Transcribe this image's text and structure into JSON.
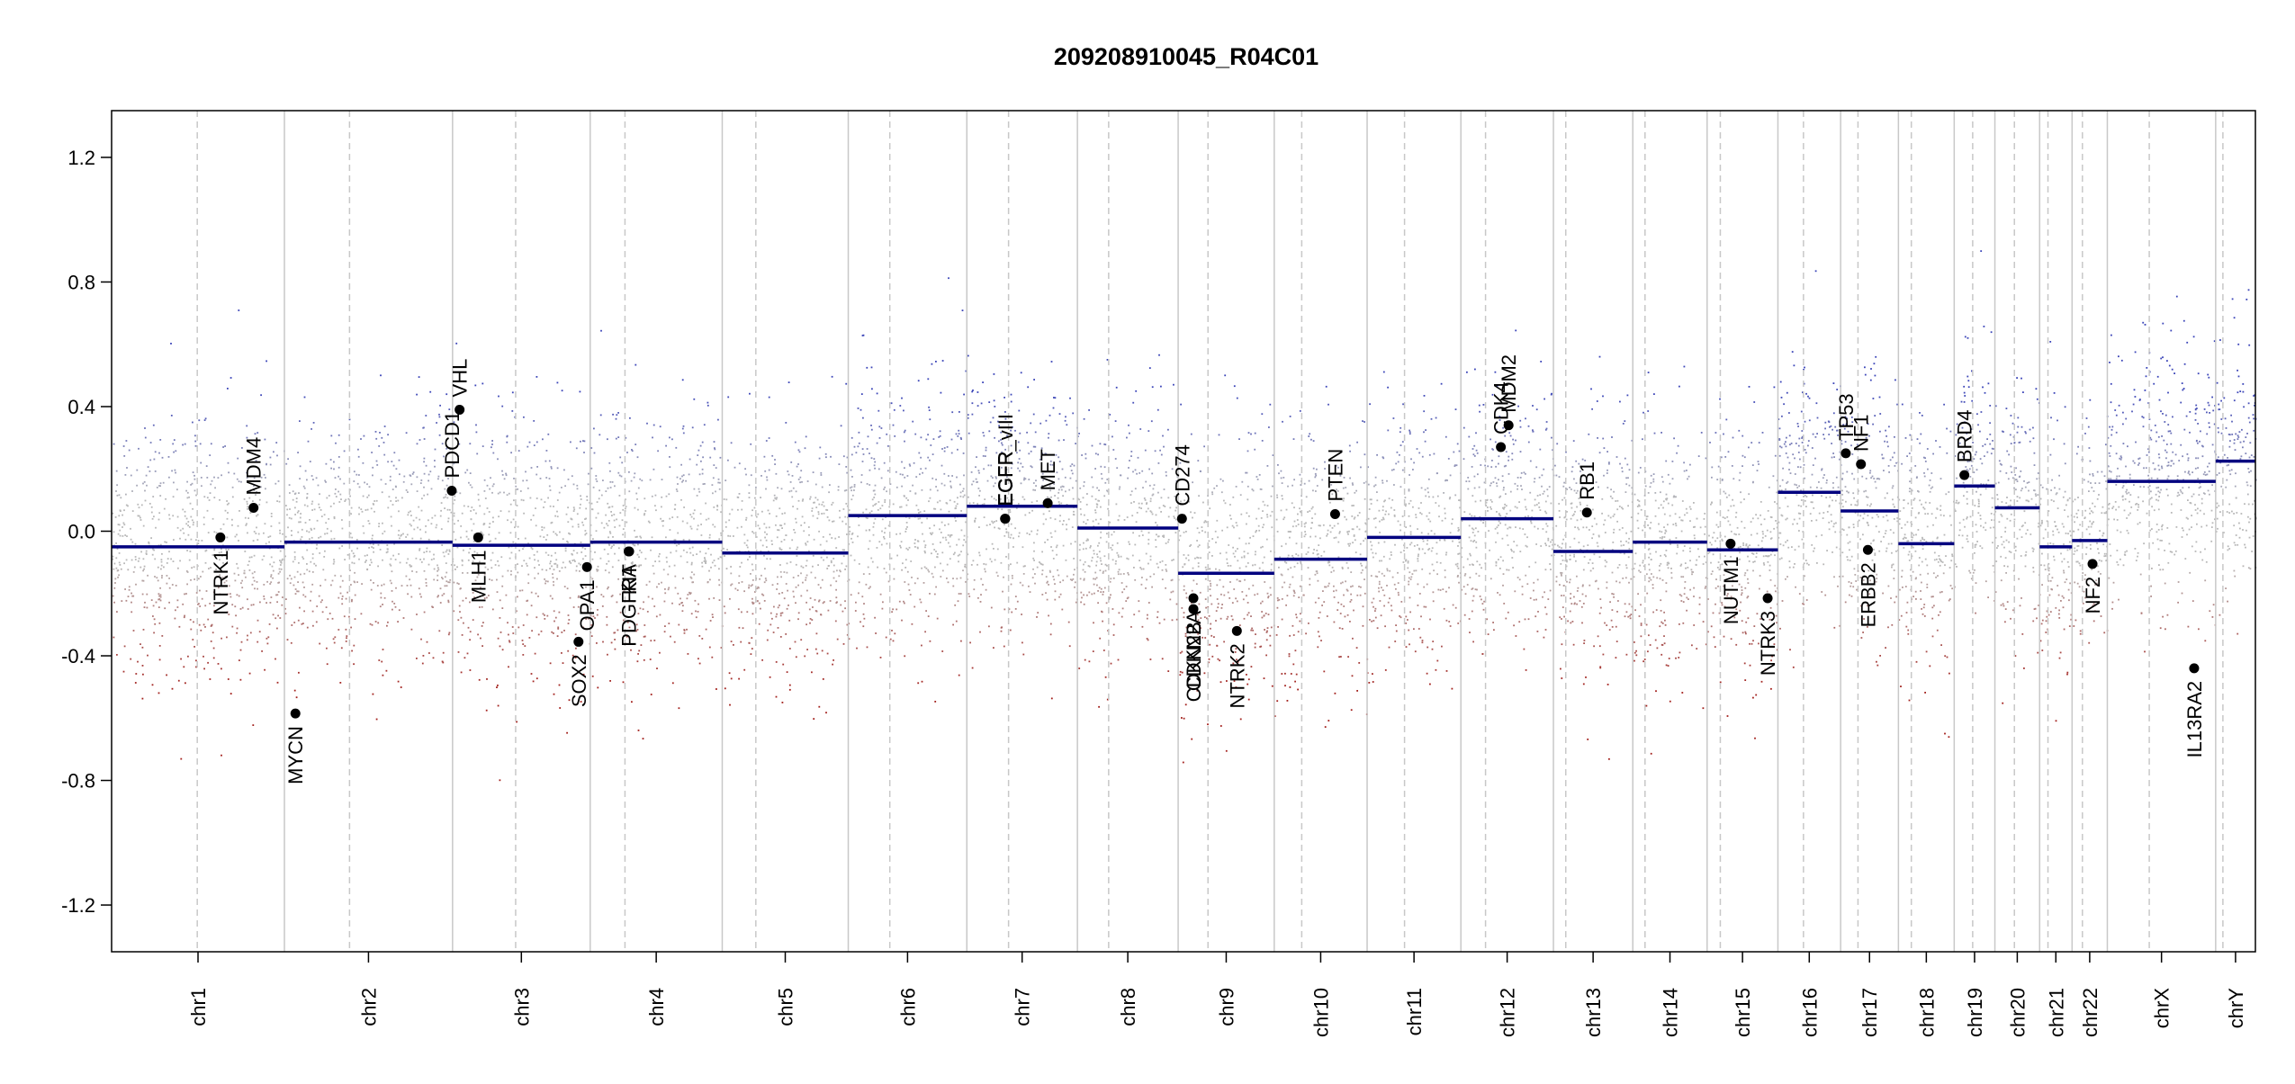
{
  "chart_data": {
    "type": "scatter",
    "title": "209208910045_R04C01",
    "xlabel": "",
    "ylabel": "",
    "ylim": [
      -1.35,
      1.35
    ],
    "yticks": [
      1.2,
      0.8,
      0.4,
      0.0,
      -0.4,
      -0.8,
      -1.2
    ],
    "ytick_labels": [
      "1.2",
      "0.8",
      "0.4",
      "0.0",
      "-0.4",
      "-0.8",
      "-1.2"
    ],
    "chromosomes": [
      {
        "name": "chr1",
        "start": 0,
        "end": 248.96,
        "centromere": 123.4,
        "segment": -0.05
      },
      {
        "name": "chr2",
        "start": 248.96,
        "end": 491.15,
        "centromere": 342.76,
        "segment": -0.035
      },
      {
        "name": "chr3",
        "start": 491.15,
        "end": 689.45,
        "centromere": 582.05,
        "segment": -0.045
      },
      {
        "name": "chr4",
        "start": 689.45,
        "end": 879.66,
        "centromere": 739.55,
        "segment": -0.035
      },
      {
        "name": "chr5",
        "start": 879.66,
        "end": 1061.2,
        "centromere": 928.06,
        "segment": -0.07
      },
      {
        "name": "chr6",
        "start": 1061.2,
        "end": 1232.0,
        "centromere": 1121.05,
        "segment": 0.05
      },
      {
        "name": "chr7",
        "start": 1232.0,
        "end": 1391.3,
        "centromere": 1292.1,
        "segment": 0.08
      },
      {
        "name": "chr8",
        "start": 1391.3,
        "end": 1536.44,
        "centromere": 1436.3,
        "segment": 0.01
      },
      {
        "name": "chr9",
        "start": 1536.44,
        "end": 1674.83,
        "centromere": 1579.4,
        "segment": -0.135
      },
      {
        "name": "chr10",
        "start": 1674.83,
        "end": 1808.63,
        "centromere": 1714.43,
        "segment": -0.09
      },
      {
        "name": "chr11",
        "start": 1808.63,
        "end": 1943.72,
        "centromere": 1862.53,
        "segment": -0.02
      },
      {
        "name": "chr12",
        "start": 1943.72,
        "end": 2077.0,
        "centromere": 1979.22,
        "segment": 0.04
      },
      {
        "name": "chr13",
        "start": 2077.0,
        "end": 2191.36,
        "centromere": 2094.8,
        "segment": -0.065
      },
      {
        "name": "chr14",
        "start": 2191.36,
        "end": 2298.4,
        "centromere": 2208.96,
        "segment": -0.035
      },
      {
        "name": "chr15",
        "start": 2298.4,
        "end": 2400.39,
        "centromere": 2317.4,
        "segment": -0.06
      },
      {
        "name": "chr16",
        "start": 2400.39,
        "end": 2490.73,
        "centromere": 2437.19,
        "segment": 0.125
      },
      {
        "name": "chr17",
        "start": 2490.73,
        "end": 2573.99,
        "centromere": 2515.73,
        "segment": 0.065
      },
      {
        "name": "chr18",
        "start": 2573.99,
        "end": 2654.36,
        "centromere": 2592.59,
        "segment": -0.04
      },
      {
        "name": "chr19",
        "start": 2654.36,
        "end": 2712.97,
        "centromere": 2680.96,
        "segment": 0.145
      },
      {
        "name": "chr20",
        "start": 2712.97,
        "end": 2777.41,
        "centromere": 2741.07,
        "segment": 0.075
      },
      {
        "name": "chr21",
        "start": 2777.41,
        "end": 2824.12,
        "centromere": 2789.41,
        "segment": -0.05
      },
      {
        "name": "chr22",
        "start": 2824.12,
        "end": 2874.93,
        "centromere": 2839.02,
        "segment": -0.03
      },
      {
        "name": "chrX",
        "start": 2874.93,
        "end": 3031.0,
        "centromere": 2935.33,
        "segment": 0.16
      },
      {
        "name": "chrY",
        "start": 3031.0,
        "end": 3088.23,
        "centromere": 3041.4,
        "segment": 0.225
      }
    ],
    "genes": [
      {
        "name": "NTRK1",
        "x": 156.7,
        "y": -0.02,
        "label_side": "below"
      },
      {
        "name": "MDM4",
        "x": 204.5,
        "y": 0.075,
        "label_side": "above"
      },
      {
        "name": "MYCN",
        "x": 264.8,
        "y": -0.585,
        "label_side": "below"
      },
      {
        "name": "PDCD1",
        "x": 490.0,
        "y": 0.13,
        "label_side": "above"
      },
      {
        "name": "VHL",
        "x": 501.3,
        "y": 0.39,
        "label_side": "above"
      },
      {
        "name": "MLH1",
        "x": 528.1,
        "y": -0.02,
        "label_side": "below"
      },
      {
        "name": "SOX2",
        "x": 672.6,
        "y": -0.355,
        "label_side": "below"
      },
      {
        "name": "OPA1",
        "x": 684.8,
        "y": -0.115,
        "label_side": "below"
      },
      {
        "name": "PDGFRA",
        "x": 744.8,
        "y": -0.065,
        "label_side": "below"
      },
      {
        "name": "KIT",
        "x": 745.6,
        "y": -0.065,
        "label_side": "below"
      },
      {
        "name": "EGFR",
        "x": 1287.0,
        "y": 0.04,
        "label_side": "above"
      },
      {
        "name": "EGFR_vIII",
        "x": 1287.4,
        "y": 0.04,
        "label_side": "above"
      },
      {
        "name": "MET",
        "x": 1348.5,
        "y": 0.09,
        "label_side": "above"
      },
      {
        "name": "CD274",
        "x": 1541.9,
        "y": 0.04,
        "label_side": "above"
      },
      {
        "name": "CDKN2A",
        "x": 1558.4,
        "y": -0.215,
        "label_side": "below"
      },
      {
        "name": "CDKN2B",
        "x": 1558.4,
        "y": -0.25,
        "label_side": "below"
      },
      {
        "name": "NTRK2",
        "x": 1621.0,
        "y": -0.32,
        "label_side": "below"
      },
      {
        "name": "PTEN",
        "x": 1762.5,
        "y": 0.055,
        "label_side": "above"
      },
      {
        "name": "CDK4",
        "x": 2001.3,
        "y": 0.27,
        "label_side": "above"
      },
      {
        "name": "MDM2",
        "x": 2012.4,
        "y": 0.34,
        "label_side": "above"
      },
      {
        "name": "RB1",
        "x": 2125.2,
        "y": 0.06,
        "label_side": "above"
      },
      {
        "name": "NUTM1",
        "x": 2332.2,
        "y": -0.04,
        "label_side": "below"
      },
      {
        "name": "NTRK3",
        "x": 2385.6,
        "y": -0.215,
        "label_side": "below"
      },
      {
        "name": "TP53",
        "x": 2498.2,
        "y": 0.25,
        "label_side": "above"
      },
      {
        "name": "NF1",
        "x": 2520.0,
        "y": 0.215,
        "label_side": "above"
      },
      {
        "name": "ERBB2",
        "x": 2530.0,
        "y": -0.06,
        "label_side": "below"
      },
      {
        "name": "BRD4",
        "x": 2669.0,
        "y": 0.18,
        "label_side": "above"
      },
      {
        "name": "NF2",
        "x": 2853.6,
        "y": -0.105,
        "label_side": "below"
      },
      {
        "name": "IL13RA2",
        "x": 3000.0,
        "y": -0.44,
        "label_side": "below"
      }
    ],
    "colors": {
      "gain": "#3b45b8",
      "loss": "#a3201c",
      "neutral": "#b8b8b8",
      "segment": "#00007f",
      "gene": "#000000",
      "grid": "#c8c8c8"
    },
    "legend": "none",
    "grid": "chromosome boundaries (solid) and centromeres (dashed)"
  }
}
